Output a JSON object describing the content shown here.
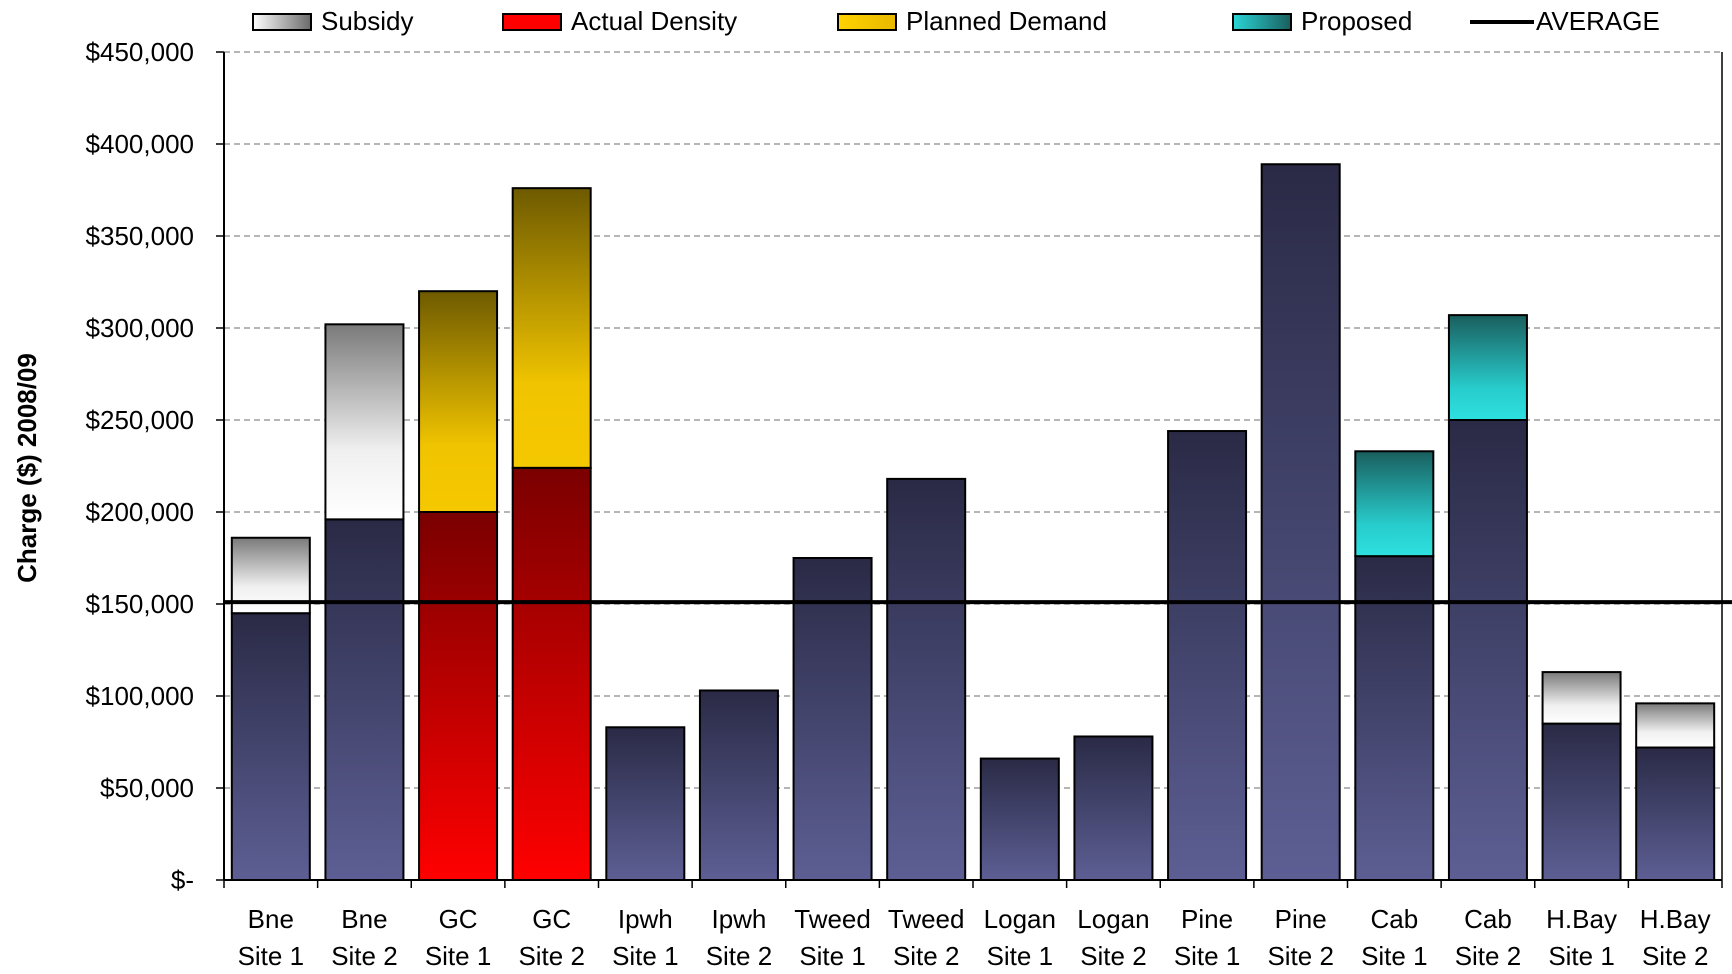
{
  "chart_data": {
    "type": "bar",
    "stacked": true,
    "title": "",
    "xlabel": "",
    "ylabel": "Charge ($) 2008/09",
    "ylim": [
      0,
      450000
    ],
    "y_ticks": [
      "$-",
      "$50,000",
      "$100,000",
      "$150,000",
      "$200,000",
      "$250,000",
      "$300,000",
      "$350,000",
      "$400,000",
      "$450,000"
    ],
    "grid": "horizontal dashed",
    "legend_position": "top",
    "categories": [
      [
        "Bne",
        "Site 1"
      ],
      [
        "Bne",
        "Site 2"
      ],
      [
        "GC",
        "Site 1"
      ],
      [
        "GC",
        "Site 2"
      ],
      [
        "Ipwh",
        "Site 1"
      ],
      [
        "Ipwh",
        "Site 2"
      ],
      [
        "Tweed",
        "Site 1"
      ],
      [
        "Tweed",
        "Site 2"
      ],
      [
        "Logan",
        "Site 1"
      ],
      [
        "Logan",
        "Site 2"
      ],
      [
        "Pine",
        "Site 1"
      ],
      [
        "Pine",
        "Site 2"
      ],
      [
        "Cab",
        "Site 1"
      ],
      [
        "Cab",
        "Site 2"
      ],
      [
        "H.Bay",
        "Site 1"
      ],
      [
        "H.Bay",
        "Site 2"
      ]
    ],
    "base_values": [
      145000,
      196000,
      0,
      0,
      83000,
      103000,
      175000,
      218000,
      66000,
      78000,
      244000,
      389000,
      176000,
      250000,
      85000,
      72000
    ],
    "series": [
      {
        "name": "Subsidy",
        "color": "#a0a0a0",
        "values": [
          41000,
          106000,
          0,
          0,
          0,
          0,
          0,
          0,
          0,
          0,
          0,
          0,
          0,
          0,
          28000,
          24000
        ]
      },
      {
        "name": "Actual Density",
        "color": "#e00000",
        "values": [
          0,
          0,
          200000,
          224000,
          0,
          0,
          0,
          0,
          0,
          0,
          0,
          0,
          0,
          0,
          0,
          0
        ]
      },
      {
        "name": "Planned Demand",
        "color": "#f0c000",
        "values": [
          0,
          0,
          120000,
          152000,
          0,
          0,
          0,
          0,
          0,
          0,
          0,
          0,
          0,
          0,
          0,
          0
        ]
      },
      {
        "name": "Proposed",
        "color": "#20b0b0",
        "values": [
          0,
          0,
          0,
          0,
          0,
          0,
          0,
          0,
          0,
          0,
          0,
          0,
          57000,
          57000,
          0,
          0
        ]
      }
    ],
    "average": {
      "name": "AVERAGE",
      "value": 151000,
      "color": "#000000"
    }
  }
}
